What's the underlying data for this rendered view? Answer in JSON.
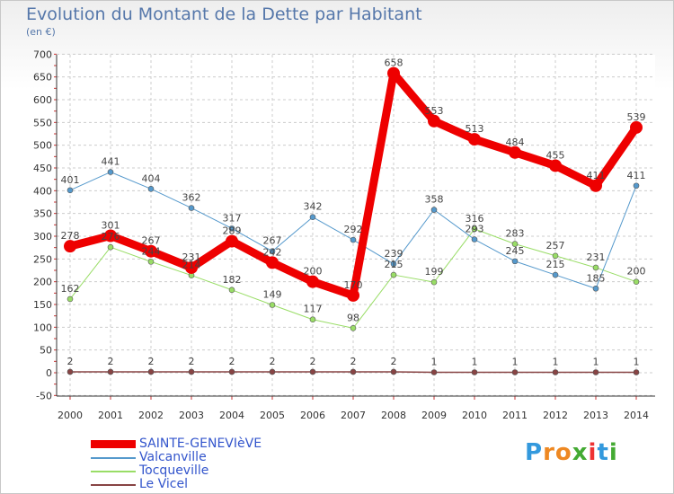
{
  "title": "Evolution du Montant de la Dette par Habitant",
  "unit": "(en €)",
  "logo": "Proxiti",
  "chart_data": {
    "type": "line",
    "categories": [
      "2000",
      "2001",
      "2002",
      "2003",
      "2004",
      "2005",
      "2006",
      "2007",
      "2008",
      "2009",
      "2010",
      "2011",
      "2012",
      "2013",
      "2014"
    ],
    "ylim": [
      -50,
      700
    ],
    "yticks": [
      -50,
      0,
      50,
      100,
      150,
      200,
      250,
      300,
      350,
      400,
      450,
      500,
      550,
      600,
      650,
      700
    ],
    "grid": true,
    "legend_position": "bottom-left",
    "series": [
      {
        "name": "SAINTE-GENEVIèVE",
        "color": "#ee0000",
        "values": [
          278,
          301,
          267,
          231,
          289,
          242,
          200,
          170,
          658,
          553,
          513,
          484,
          455,
          411,
          539
        ]
      },
      {
        "name": "Valcanville",
        "color": "#5599cc",
        "values": [
          401,
          441,
          404,
          362,
          317,
          267,
          342,
          292,
          239,
          358,
          293,
          245,
          215,
          185,
          411
        ]
      },
      {
        "name": "Tocqueville",
        "color": "#99dd66",
        "values": [
          162,
          276,
          244,
          214,
          182,
          149,
          117,
          98,
          215,
          199,
          316,
          283,
          257,
          231,
          200
        ]
      },
      {
        "name": "Le Vicel",
        "color": "#884444",
        "values": [
          2,
          2,
          2,
          2,
          2,
          2,
          2,
          2,
          2,
          1,
          1,
          1,
          1,
          1,
          1
        ]
      }
    ]
  }
}
